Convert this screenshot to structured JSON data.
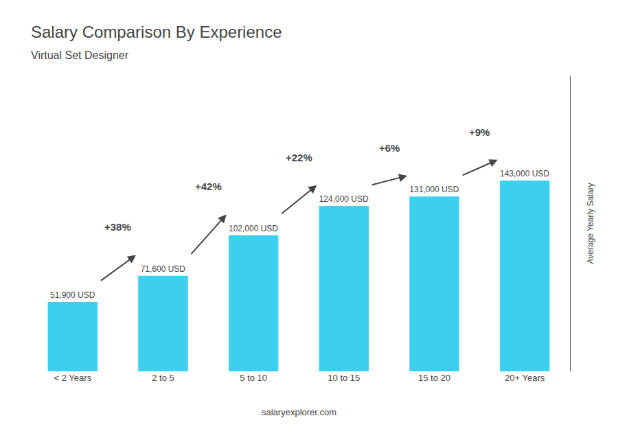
{
  "chart_data": {
    "type": "bar",
    "title": "Salary Comparison By Experience",
    "subtitle": "Virtual Set Designer",
    "ylabel": "Average Yearly Salary",
    "watermark": "salaryexplorer.com",
    "categories": [
      "< 2 Years",
      "2 to 5",
      "5 to 10",
      "10 to 15",
      "15 to 20",
      "20+ Years"
    ],
    "values": [
      51900,
      71600,
      102000,
      124000,
      131000,
      143000
    ],
    "value_labels": [
      "51,900 USD",
      "71,600 USD",
      "102,000 USD",
      "124,000 USD",
      "131,000 USD",
      "143,000 USD"
    ],
    "data_labels": true,
    "color": "#3dcfee",
    "annotations": [
      {
        "text": "+38%",
        "from": "< 2 Years",
        "to": "2 to 5"
      },
      {
        "text": "+42%",
        "from": "2 to 5",
        "to": "5 to 10"
      },
      {
        "text": "+22%",
        "from": "5 to 10",
        "to": "10 to 15"
      },
      {
        "text": "+6%",
        "from": "10 to 15",
        "to": "15 to 20"
      },
      {
        "text": "+9%",
        "from": "15 to 20",
        "to": "20+ Years"
      }
    ],
    "ylim": [
      0,
      221650
    ],
    "tick_labels": "x",
    "grid": false
  }
}
